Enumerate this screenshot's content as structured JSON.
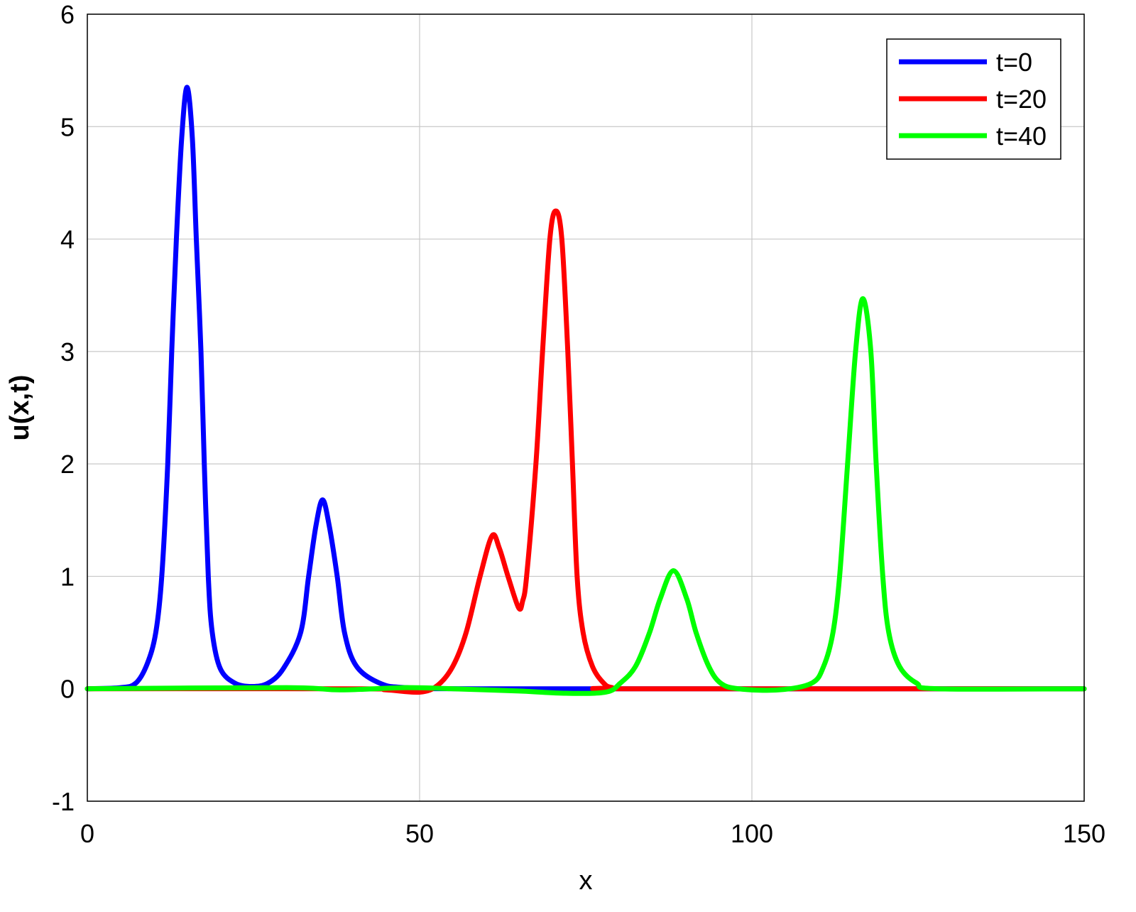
{
  "chart_data": {
    "type": "line",
    "title": "",
    "xlabel": "x",
    "ylabel": "u(x,t)",
    "xlim": [
      0,
      150
    ],
    "ylim": [
      -1,
      6
    ],
    "xticks": [
      "0",
      "50",
      "100",
      "150"
    ],
    "yticks": [
      "-1",
      "0",
      "1",
      "2",
      "3",
      "4",
      "5",
      "6"
    ],
    "grid": true,
    "legend_position": "top-right",
    "series": [
      {
        "name": "t=0",
        "color": "#0000ff",
        "points": [
          [
            0,
            0
          ],
          [
            5,
            0.01
          ],
          [
            7.3,
            0.05
          ],
          [
            9,
            0.22
          ],
          [
            10.3,
            0.5
          ],
          [
            11.2,
            1
          ],
          [
            12.1,
            2
          ],
          [
            12.7,
            3
          ],
          [
            13.4,
            4
          ],
          [
            14.2,
            4.9
          ],
          [
            15,
            5.35
          ],
          [
            15.8,
            4.9
          ],
          [
            16.4,
            4
          ],
          [
            17.1,
            3
          ],
          [
            17.6,
            2
          ],
          [
            18.2,
            1
          ],
          [
            18.8,
            0.5
          ],
          [
            20,
            0.18
          ],
          [
            22.2,
            0.05
          ],
          [
            24.8,
            0.02
          ],
          [
            27.2,
            0.05
          ],
          [
            29.5,
            0.18
          ],
          [
            32.1,
            0.5
          ],
          [
            33.3,
            1
          ],
          [
            34.4,
            1.45
          ],
          [
            35.4,
            1.68
          ],
          [
            36.4,
            1.45
          ],
          [
            37.6,
            1
          ],
          [
            38.7,
            0.5
          ],
          [
            40.5,
            0.2
          ],
          [
            44,
            0.05
          ],
          [
            48,
            0.01
          ],
          [
            60,
            0
          ],
          [
            150,
            0
          ]
        ]
      },
      {
        "name": "t=20",
        "color": "#ff0000",
        "points": [
          [
            0,
            0
          ],
          [
            40,
            0
          ],
          [
            45,
            -0.01
          ],
          [
            50,
            -0.03
          ],
          [
            52.7,
            0.03
          ],
          [
            55,
            0.2
          ],
          [
            57,
            0.5
          ],
          [
            59.1,
            1
          ],
          [
            60.9,
            1.36
          ],
          [
            62,
            1.25
          ],
          [
            63.3,
            1
          ],
          [
            64.9,
            0.72
          ],
          [
            65.5,
            0.78
          ],
          [
            66.1,
            1
          ],
          [
            67.5,
            2
          ],
          [
            68.5,
            3
          ],
          [
            69.6,
            4
          ],
          [
            70.5,
            4.25
          ],
          [
            71.4,
            4
          ],
          [
            72.3,
            3
          ],
          [
            73,
            2
          ],
          [
            73.7,
            1
          ],
          [
            74.6,
            0.5
          ],
          [
            76,
            0.2
          ],
          [
            77.7,
            0.05
          ],
          [
            79,
            0.01
          ],
          [
            82,
            0
          ],
          [
            150,
            0
          ]
        ]
      },
      {
        "name": "t=40",
        "color": "#00ff00",
        "points": [
          [
            0,
            0
          ],
          [
            30,
            0.01
          ],
          [
            38,
            -0.01
          ],
          [
            48,
            0.01
          ],
          [
            55,
            0
          ],
          [
            65,
            -0.02
          ],
          [
            72,
            -0.04
          ],
          [
            78,
            -0.03
          ],
          [
            80.2,
            0.05
          ],
          [
            82.5,
            0.2
          ],
          [
            84.6,
            0.5
          ],
          [
            86.2,
            0.8
          ],
          [
            88.2,
            1.05
          ],
          [
            90.2,
            0.8
          ],
          [
            91.6,
            0.5
          ],
          [
            93.5,
            0.2
          ],
          [
            95.3,
            0.05
          ],
          [
            98,
            0
          ],
          [
            104,
            -0.01
          ],
          [
            109,
            0.05
          ],
          [
            110.8,
            0.2
          ],
          [
            112.2,
            0.5
          ],
          [
            113.2,
            1
          ],
          [
            114.4,
            2
          ],
          [
            115.6,
            3
          ],
          [
            116.7,
            3.47
          ],
          [
            117.9,
            3
          ],
          [
            118.7,
            2
          ],
          [
            119.7,
            1
          ],
          [
            120.6,
            0.5
          ],
          [
            122.2,
            0.2
          ],
          [
            124.8,
            0.05
          ],
          [
            128,
            0
          ],
          [
            150,
            0
          ]
        ]
      }
    ]
  }
}
